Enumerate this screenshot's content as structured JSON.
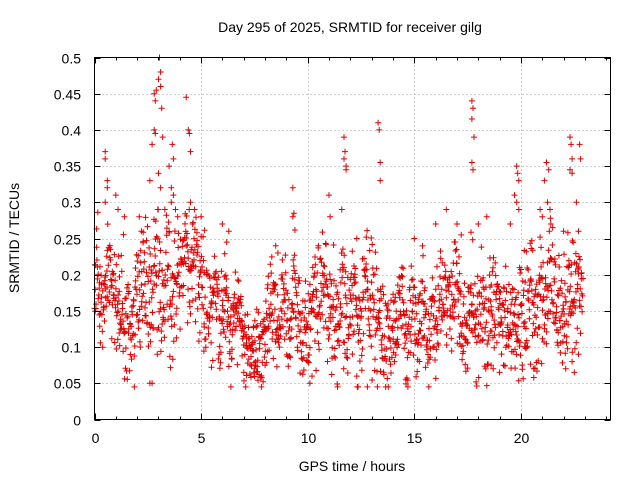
{
  "chart_data": {
    "type": "scatter",
    "title": "Day 295 of 2025, SRMTID for receiver gilg",
    "xlabel": "GPS time / hours",
    "ylabel": "SRMTID / TECUs",
    "xlim": [
      0,
      24.2
    ],
    "ylim": [
      0,
      0.5
    ],
    "x_ticks": [
      0,
      5,
      10,
      15,
      20
    ],
    "x_tick_labels": [
      "0",
      "5",
      "10",
      "15",
      "20"
    ],
    "y_ticks": [
      0,
      0.05,
      0.1,
      0.15,
      0.2,
      0.25,
      0.3,
      0.35,
      0.4,
      0.45,
      0.5
    ],
    "y_tick_labels": [
      "0",
      "0.05",
      "0.1",
      "0.15",
      "0.2",
      "0.25",
      "0.3",
      "0.35",
      "0.4",
      "0.45",
      "0.5"
    ],
    "grid": true,
    "marker": "plus",
    "series": [
      {
        "name": "SRMTID",
        "color": "#e00000",
        "profile": [
          {
            "t": 0.0,
            "median": 0.185,
            "spread": 0.035
          },
          {
            "t": 1.0,
            "median": 0.175,
            "spread": 0.04
          },
          {
            "t": 2.0,
            "median": 0.165,
            "spread": 0.045
          },
          {
            "t": 3.0,
            "median": 0.2,
            "spread": 0.05
          },
          {
            "t": 4.0,
            "median": 0.19,
            "spread": 0.045
          },
          {
            "t": 5.0,
            "median": 0.19,
            "spread": 0.04
          },
          {
            "t": 6.0,
            "median": 0.15,
            "spread": 0.035
          },
          {
            "t": 7.0,
            "median": 0.115,
            "spread": 0.025
          },
          {
            "t": 8.0,
            "median": 0.135,
            "spread": 0.03
          },
          {
            "t": 9.0,
            "median": 0.16,
            "spread": 0.035
          },
          {
            "t": 10.0,
            "median": 0.13,
            "spread": 0.035
          },
          {
            "t": 11.0,
            "median": 0.15,
            "spread": 0.04
          },
          {
            "t": 12.0,
            "median": 0.15,
            "spread": 0.035
          },
          {
            "t": 13.0,
            "median": 0.16,
            "spread": 0.04
          },
          {
            "t": 14.0,
            "median": 0.14,
            "spread": 0.035
          },
          {
            "t": 15.0,
            "median": 0.13,
            "spread": 0.035
          },
          {
            "t": 16.0,
            "median": 0.145,
            "spread": 0.035
          },
          {
            "t": 17.0,
            "median": 0.15,
            "spread": 0.035
          },
          {
            "t": 18.0,
            "median": 0.145,
            "spread": 0.035
          },
          {
            "t": 19.0,
            "median": 0.14,
            "spread": 0.035
          },
          {
            "t": 20.0,
            "median": 0.15,
            "spread": 0.04
          },
          {
            "t": 21.0,
            "median": 0.16,
            "spread": 0.04
          },
          {
            "t": 22.0,
            "median": 0.17,
            "spread": 0.04
          },
          {
            "t": 22.9,
            "median": 0.17,
            "spread": 0.04
          }
        ],
        "x_range": [
          0.0,
          22.9
        ],
        "n_background_points": 1750,
        "notable_points": [
          [
            0.5,
            0.37
          ],
          [
            0.5,
            0.36
          ],
          [
            0.6,
            0.33
          ],
          [
            0.6,
            0.32
          ],
          [
            0.5,
            0.3
          ],
          [
            1.0,
            0.31
          ],
          [
            1.1,
            0.29
          ],
          [
            1.4,
            0.28
          ],
          [
            2.1,
            0.28
          ],
          [
            2.2,
            0.26
          ],
          [
            2.6,
            0.33
          ],
          [
            2.7,
            0.38
          ],
          [
            2.6,
            0.05
          ],
          [
            2.7,
            0.05
          ],
          [
            2.8,
            0.4
          ],
          [
            2.85,
            0.395
          ],
          [
            2.8,
            0.45
          ],
          [
            2.85,
            0.44
          ],
          [
            2.9,
            0.455
          ],
          [
            3.0,
            0.47
          ],
          [
            3.05,
            0.5
          ],
          [
            3.1,
            0.48
          ],
          [
            3.1,
            0.46
          ],
          [
            3.15,
            0.43
          ],
          [
            3.2,
            0.39
          ],
          [
            3.0,
            0.34
          ],
          [
            3.1,
            0.32
          ],
          [
            3.5,
            0.35
          ],
          [
            3.6,
            0.32
          ],
          [
            3.6,
            0.3
          ],
          [
            3.7,
            0.31
          ],
          [
            3.65,
            0.38
          ],
          [
            3.7,
            0.36
          ],
          [
            3.9,
            0.28
          ],
          [
            4.3,
            0.445
          ],
          [
            4.4,
            0.4
          ],
          [
            4.45,
            0.395
          ],
          [
            4.5,
            0.37
          ],
          [
            4.5,
            0.3
          ],
          [
            4.6,
            0.27
          ],
          [
            5.0,
            0.28
          ],
          [
            6.0,
            0.27
          ],
          [
            6.2,
            0.245
          ],
          [
            6.3,
            0.26
          ],
          [
            6.5,
            0.16
          ],
          [
            7.0,
            0.065
          ],
          [
            7.5,
            0.07
          ],
          [
            8.0,
            0.075
          ],
          [
            8.5,
            0.24
          ],
          [
            8.6,
            0.23
          ],
          [
            9.3,
            0.32
          ],
          [
            9.35,
            0.285
          ],
          [
            9.3,
            0.28
          ],
          [
            10.1,
            0.05
          ],
          [
            10.2,
            0.06
          ],
          [
            10.5,
            0.24
          ],
          [
            11.0,
            0.31
          ],
          [
            11.05,
            0.28
          ],
          [
            11.4,
            0.045
          ],
          [
            11.6,
            0.29
          ],
          [
            11.7,
            0.39
          ],
          [
            11.75,
            0.37
          ],
          [
            11.7,
            0.36
          ],
          [
            11.8,
            0.35
          ],
          [
            11.8,
            0.345
          ],
          [
            12.3,
            0.06
          ],
          [
            12.3,
            0.25
          ],
          [
            12.8,
            0.045
          ],
          [
            13.3,
            0.41
          ],
          [
            13.35,
            0.4
          ],
          [
            13.4,
            0.355
          ],
          [
            13.4,
            0.33
          ],
          [
            14.6,
            0.055
          ],
          [
            15.0,
            0.25
          ],
          [
            16.0,
            0.27
          ],
          [
            16.5,
            0.29
          ],
          [
            17.0,
            0.27
          ],
          [
            17.2,
            0.255
          ],
          [
            17.7,
            0.44
          ],
          [
            17.75,
            0.43
          ],
          [
            17.7,
            0.415
          ],
          [
            17.8,
            0.39
          ],
          [
            17.7,
            0.355
          ],
          [
            17.75,
            0.345
          ],
          [
            18.0,
            0.27
          ],
          [
            18.4,
            0.28
          ],
          [
            18.6,
            0.075
          ],
          [
            18.7,
            0.07
          ],
          [
            19.0,
            0.065
          ],
          [
            19.5,
            0.27
          ],
          [
            19.7,
            0.31
          ],
          [
            19.8,
            0.35
          ],
          [
            19.85,
            0.34
          ],
          [
            19.9,
            0.33
          ],
          [
            19.8,
            0.3
          ],
          [
            19.9,
            0.29
          ],
          [
            20.6,
            0.07
          ],
          [
            20.9,
            0.29
          ],
          [
            21.0,
            0.28
          ],
          [
            21.1,
            0.33
          ],
          [
            21.2,
            0.355
          ],
          [
            21.3,
            0.345
          ],
          [
            21.25,
            0.3
          ],
          [
            21.4,
            0.27
          ],
          [
            22.0,
            0.26
          ],
          [
            22.1,
            0.07
          ],
          [
            22.3,
            0.39
          ],
          [
            22.35,
            0.38
          ],
          [
            22.4,
            0.36
          ],
          [
            22.3,
            0.345
          ],
          [
            22.4,
            0.34
          ],
          [
            22.6,
            0.3
          ],
          [
            22.7,
            0.26
          ],
          [
            22.75,
            0.38
          ],
          [
            22.8,
            0.36
          ],
          [
            22.7,
            0.09
          ],
          [
            22.5,
            0.065
          ],
          [
            22.4,
            0.08
          ]
        ]
      }
    ]
  }
}
